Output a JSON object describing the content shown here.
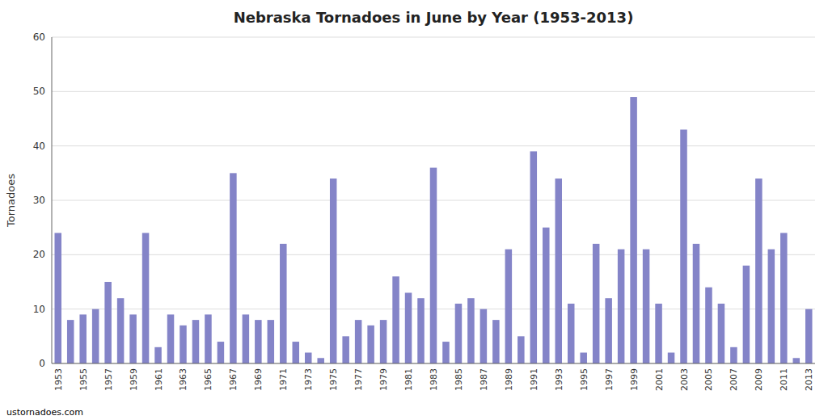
{
  "chart_data": {
    "type": "bar",
    "title": "Nebraska Tornadoes in June by Year (1953-2013)",
    "ylabel": "Tornadoes",
    "categories": [
      "1953",
      null,
      "1955",
      null,
      "1957",
      null,
      "1959",
      null,
      "1961",
      null,
      "1963",
      null,
      "1965",
      null,
      "1967",
      null,
      "1969",
      null,
      "1971",
      null,
      "1973",
      null,
      "1975",
      null,
      "1977",
      null,
      "1979",
      null,
      "1981",
      null,
      "1983",
      null,
      "1985",
      null,
      "1987",
      null,
      "1989",
      null,
      "1991",
      null,
      "1993",
      null,
      "1995",
      null,
      "1997",
      null,
      "1999",
      null,
      "2001",
      null,
      "2003",
      null,
      "2005",
      null,
      "2007",
      null,
      "2009",
      null,
      "2011",
      null,
      "2013"
    ],
    "values": [
      24,
      8,
      9,
      10,
      15,
      12,
      9,
      24,
      3,
      9,
      7,
      8,
      9,
      4,
      35,
      9,
      8,
      8,
      22,
      4,
      2,
      1,
      34,
      5,
      8,
      7,
      8,
      16,
      13,
      12,
      36,
      4,
      11,
      12,
      10,
      8,
      21,
      5,
      39,
      25,
      34,
      11,
      2,
      22,
      12,
      21,
      49,
      21,
      11,
      2,
      43,
      22,
      14,
      11,
      3,
      18,
      34,
      21,
      24,
      1,
      10
    ],
    "color": "#8484c8",
    "ylim": [
      0,
      60
    ],
    "yticks": [
      0,
      10,
      20,
      30,
      40,
      50,
      60
    ],
    "grid": true,
    "annotations": [
      "ustornadoes.com"
    ]
  }
}
